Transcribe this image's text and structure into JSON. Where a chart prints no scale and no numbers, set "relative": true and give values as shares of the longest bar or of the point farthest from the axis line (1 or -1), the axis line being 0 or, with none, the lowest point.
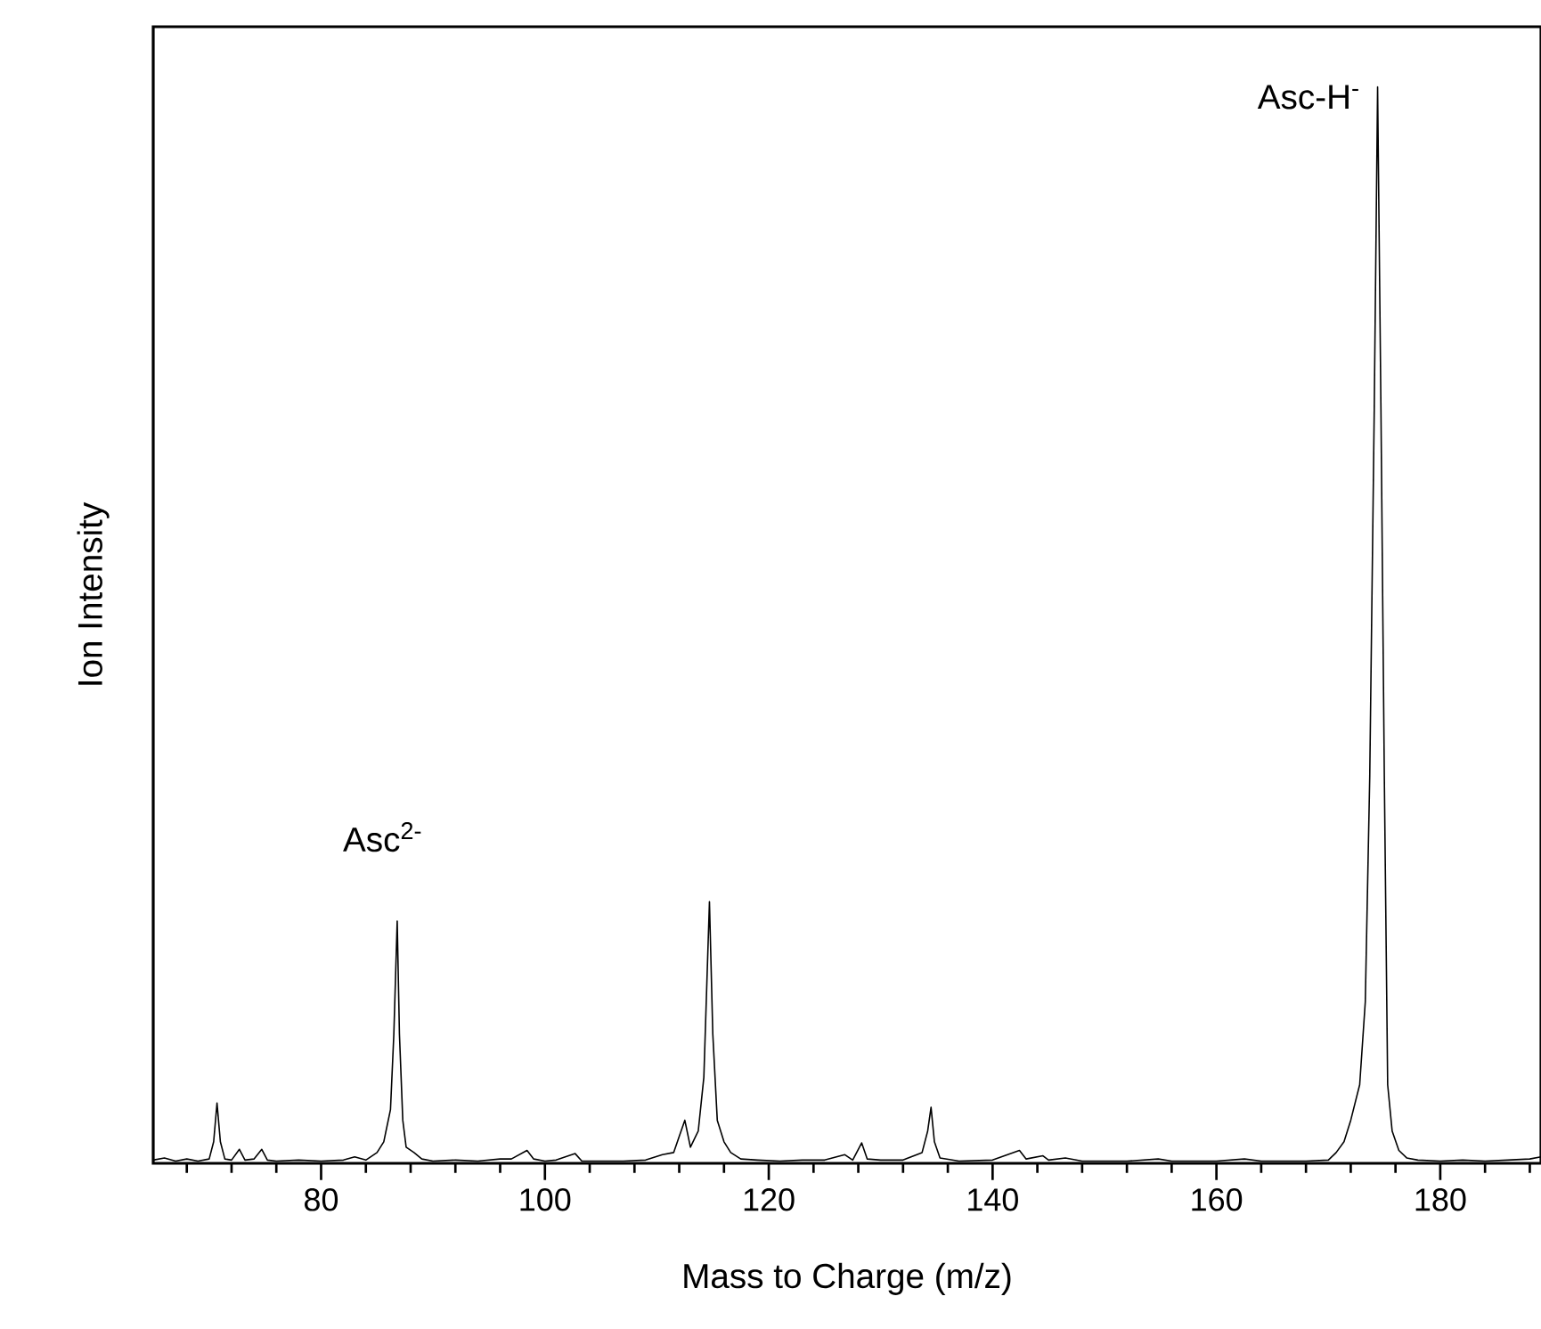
{
  "chart_data": {
    "type": "line",
    "relative": true,
    "xlabel": "Mass to Charge (m/z)",
    "ylabel": "Ion Intensity",
    "xlim": [
      65,
      189
    ],
    "xticks": [
      {
        "value": 68,
        "label": null
      },
      {
        "value": 72,
        "label": null
      },
      {
        "value": 76,
        "label": null
      },
      80,
      {
        "value": 84,
        "label": null
      },
      {
        "value": 88,
        "label": null
      },
      {
        "value": 92,
        "label": null
      },
      {
        "value": 96,
        "label": null
      },
      100,
      {
        "value": 104,
        "label": null
      },
      {
        "value": 108,
        "label": null
      },
      {
        "value": 112,
        "label": null
      },
      {
        "value": 116,
        "label": null
      },
      120,
      {
        "value": 124,
        "label": null
      },
      {
        "value": 128,
        "label": null
      },
      {
        "value": 132,
        "label": null
      },
      {
        "value": 136,
        "label": null
      },
      140,
      {
        "value": 144,
        "label": null
      },
      {
        "value": 148,
        "label": null
      },
      {
        "value": 152,
        "label": null
      },
      {
        "value": 156,
        "label": null
      },
      160,
      {
        "value": 164,
        "label": null
      },
      {
        "value": 168,
        "label": null
      },
      {
        "value": 172,
        "label": null
      },
      {
        "value": 176,
        "label": null
      },
      180,
      {
        "value": 184,
        "label": null
      },
      {
        "value": 188,
        "label": null
      }
    ],
    "annotations": [
      {
        "text": "Asc$^{2-}$",
        "x": 86.8,
        "y": 0.225
      },
      {
        "text": "Asc-H$^{-}$",
        "x": 174.4,
        "y": 1.0
      }
    ],
    "series": [
      {
        "color": "#000000",
        "x": [
          65,
          66,
          67,
          68,
          69,
          70,
          70.4,
          70.7,
          71.0,
          71.4,
          72,
          72.7,
          73.2,
          74,
          74.7,
          75.2,
          76,
          78,
          80,
          82,
          83,
          84,
          85,
          85.6,
          86.2,
          86.5,
          86.8,
          87.0,
          87.3,
          87.6,
          88.3,
          89,
          90,
          92,
          94,
          96,
          97,
          98.4,
          99,
          100,
          101,
          102.7,
          103.3,
          105,
          107,
          109,
          110.5,
          111.5,
          112.5,
          113.0,
          113.7,
          114.2,
          114.7,
          115.0,
          115.4,
          116,
          116.6,
          117.5,
          119,
          121,
          123,
          125,
          126.8,
          127.5,
          128.3,
          128.8,
          130,
          132,
          133.7,
          134.2,
          134.5,
          134.8,
          135.3,
          137,
          140,
          142.4,
          143,
          144.5,
          145,
          146.5,
          148,
          150,
          152,
          154.8,
          156,
          158,
          160,
          162.5,
          164,
          166,
          168,
          170,
          170.7,
          171.4,
          172.0,
          172.8,
          173.3,
          173.7,
          174.1,
          174.4,
          174.7,
          175.0,
          175.3,
          175.7,
          176.3,
          177,
          178,
          180,
          182,
          184,
          186,
          188,
          189
        ],
        "values": [
          0.003,
          0.005,
          0.002,
          0.004,
          0.002,
          0.004,
          0.02,
          0.056,
          0.02,
          0.004,
          0.003,
          0.013,
          0.003,
          0.004,
          0.013,
          0.003,
          0.002,
          0.003,
          0.002,
          0.003,
          0.006,
          0.003,
          0.01,
          0.02,
          0.05,
          0.12,
          0.225,
          0.12,
          0.04,
          0.015,
          0.01,
          0.004,
          0.002,
          0.003,
          0.002,
          0.004,
          0.004,
          0.012,
          0.004,
          0.002,
          0.003,
          0.009,
          0.002,
          0.002,
          0.002,
          0.003,
          0.008,
          0.01,
          0.04,
          0.015,
          0.03,
          0.08,
          0.243,
          0.12,
          0.04,
          0.02,
          0.01,
          0.004,
          0.003,
          0.002,
          0.003,
          0.003,
          0.008,
          0.003,
          0.019,
          0.004,
          0.003,
          0.003,
          0.01,
          0.03,
          0.052,
          0.02,
          0.005,
          0.002,
          0.003,
          0.012,
          0.004,
          0.007,
          0.003,
          0.005,
          0.002,
          0.002,
          0.002,
          0.004,
          0.002,
          0.002,
          0.002,
          0.004,
          0.002,
          0.002,
          0.002,
          0.003,
          0.01,
          0.02,
          0.04,
          0.073,
          0.15,
          0.36,
          0.7,
          1.0,
          0.7,
          0.36,
          0.073,
          0.03,
          0.012,
          0.005,
          0.003,
          0.002,
          0.003,
          0.002,
          0.003,
          0.004,
          0.006
        ]
      }
    ]
  }
}
